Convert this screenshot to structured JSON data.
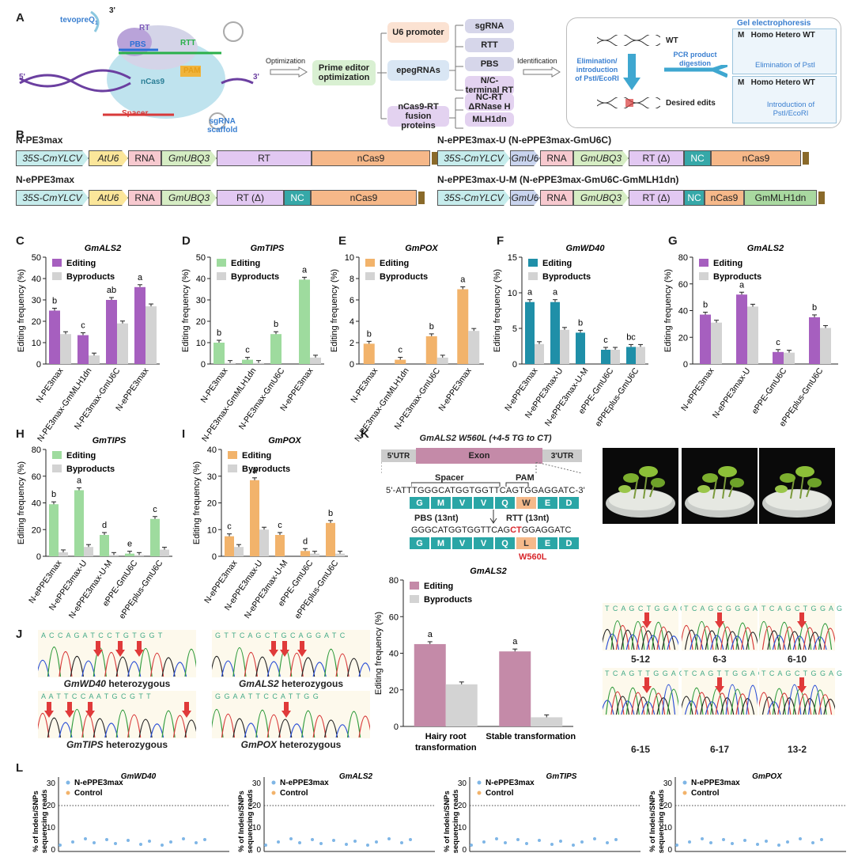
{
  "panels": {
    "A": "A",
    "B": "B",
    "C": "C",
    "D": "D",
    "E": "E",
    "F": "F",
    "G": "G",
    "H": "H",
    "I": "I",
    "J": "J",
    "K": "K",
    "L": "L"
  },
  "panelA": {
    "tevopreq": "tevopreQ",
    "tevopreq_sub": "1",
    "rt": "RT",
    "pbs": "PBS",
    "rtt": "RTT",
    "pam": "PAM",
    "ncas9": "nCas9",
    "spacer": "Spacer",
    "sgrna_scaffold": "sgRNA\nscaffold",
    "end3": "3'",
    "end5": "5'",
    "optimization": "Optimization",
    "prime_editor_opt": "Prime editor optimization",
    "u6_promoter": "U6 promoter",
    "epegrnas": "epegRNAs",
    "fusion": "nCas9-RT fusion proteins",
    "sgrna": "sgRNA",
    "rtt_box": "RTT",
    "pbs_box": "PBS",
    "nc_rt": "N/C-terminal RT",
    "nc_rt_rnase": "NC-RT ΔRNase H",
    "mlh1dn": "MLH1dn",
    "identification": "Identification",
    "wt": "WT",
    "elim_intro": "Elimination/ introduction of PstI/EcoRI",
    "pcr_digest": "PCR product digestion",
    "desired_edits": "Desired edits",
    "gel_title": "Gel electrophoresis",
    "gel_header": "M   Homo Hetero WT",
    "gel_elim": "Elimination of PstI",
    "gel_intro": "Introduction of PstI/EcoRI"
  },
  "panelB": {
    "constructs": [
      {
        "name": "N-PE3max",
        "parts": [
          "35S-CmYLCV",
          "AtU6",
          "RNA",
          "GmUBQ3",
          "RT",
          "nCas9"
        ]
      },
      {
        "name": "N-ePPE3max",
        "parts": [
          "35S-CmYLCV",
          "AtU6",
          "RNA",
          "GmUBQ3",
          "RT (Δ)",
          "NC",
          "nCas9"
        ]
      },
      {
        "name": "N-ePPE3max-U (N-ePPE3max-GmU6C)",
        "parts": [
          "35S-CmYLCV",
          "GmU6",
          "RNA",
          "GmUBQ3",
          "RT (Δ)",
          "NC",
          "nCas9"
        ]
      },
      {
        "name": "N-ePPE3max-U-M (N-ePPE3max-GmU6C-GmMLH1dn)",
        "parts": [
          "35S-CmYLCV",
          "GmU6",
          "RNA",
          "GmUBQ3",
          "RT (Δ)",
          "NC",
          "nCas9",
          "GmMLH1dn"
        ]
      }
    ]
  },
  "legend": {
    "editing": "Editing",
    "byproducts": "Byproducts"
  },
  "ylabel": "Editing frequency (%)",
  "chart_data": [
    {
      "panel": "C",
      "type": "bar",
      "title": "GmALS2",
      "ylabel": "Editing frequency (%)",
      "ylim": [
        0,
        50
      ],
      "yticks": [
        0,
        10,
        20,
        30,
        40,
        50
      ],
      "categories": [
        "N-PE3max",
        "N-PE3max-GmMLH1dn",
        "N-PE3max-GmU6C",
        "N-ePPE3max"
      ],
      "series": [
        {
          "name": "Editing",
          "color": "#a65fbf",
          "values": [
            25,
            13.5,
            30,
            36
          ]
        },
        {
          "name": "Byproducts",
          "color": "#d3d3d3",
          "values": [
            14,
            4,
            19,
            27
          ]
        }
      ],
      "letters": [
        "b",
        "c",
        "ab",
        "a"
      ]
    },
    {
      "panel": "D",
      "type": "bar",
      "title": "GmTIPS",
      "ylabel": "Editing frequency (%)",
      "ylim": [
        0,
        50
      ],
      "yticks": [
        0,
        10,
        20,
        30,
        40,
        50
      ],
      "categories": [
        "N-PE3max",
        "N-PE3max-GmMLH1dn",
        "N-PE3max-GmU6C",
        "N-ePPE3max"
      ],
      "series": [
        {
          "name": "Editing",
          "color": "#9edb9e",
          "values": [
            10,
            2,
            14,
            39.5
          ]
        },
        {
          "name": "Byproducts",
          "color": "#d3d3d3",
          "values": [
            0.5,
            0.5,
            0,
            3
          ]
        }
      ],
      "letters": [
        "b",
        "c",
        "b",
        "a"
      ]
    },
    {
      "panel": "E",
      "type": "bar",
      "title": "GmPOX",
      "ylabel": "Editing frequency (%)",
      "ylim": [
        0,
        10
      ],
      "yticks": [
        0,
        2,
        4,
        6,
        8,
        10
      ],
      "categories": [
        "N-PE3max",
        "N-PE3max-GmMLH1dn",
        "N-PE3max-GmU6C",
        "N-ePPE3max"
      ],
      "series": [
        {
          "name": "Editing",
          "color": "#f2b36b",
          "values": [
            1.9,
            0.4,
            2.6,
            7
          ]
        },
        {
          "name": "Byproducts",
          "color": "#d3d3d3",
          "values": [
            0,
            0,
            0.6,
            3.1
          ]
        }
      ],
      "letters": [
        "b",
        "c",
        "b",
        "a"
      ]
    },
    {
      "panel": "F",
      "type": "bar",
      "title": "GmWD40",
      "ylabel": "Editing frequency (%)",
      "ylim": [
        0,
        15
      ],
      "yticks": [
        0,
        5,
        10,
        15
      ],
      "categories": [
        "N-ePPE3max",
        "N-ePPE3max-U",
        "N-ePPE3max-U-M",
        "ePPE-GmU6C",
        "ePPEplus-GmU6C"
      ],
      "series": [
        {
          "name": "Editing",
          "color": "#1f8fa8",
          "values": [
            8.7,
            8.7,
            4.4,
            2,
            2.4
          ]
        },
        {
          "name": "Byproducts",
          "color": "#d3d3d3",
          "values": [
            2.8,
            4.8,
            0,
            2,
            2.4
          ]
        }
      ],
      "letters": [
        "a",
        "a",
        "b",
        "c",
        "bc"
      ]
    },
    {
      "panel": "G",
      "type": "bar",
      "title": "GmALS2",
      "ylabel": "Editing frequency (%)",
      "ylim": [
        0,
        80
      ],
      "yticks": [
        0,
        20,
        40,
        60,
        80
      ],
      "categories": [
        "N-ePPE3max",
        "N-ePPE3max-U",
        "ePPE-GmU6C",
        "ePPEplus-GmU6C"
      ],
      "series": [
        {
          "name": "Editing",
          "color": "#a65fbf",
          "values": [
            37,
            52,
            9,
            35
          ]
        },
        {
          "name": "Byproducts",
          "color": "#d3d3d3",
          "values": [
            31,
            43,
            8.5,
            27
          ]
        }
      ],
      "letters": [
        "b",
        "a",
        "c",
        "b"
      ]
    },
    {
      "panel": "H",
      "type": "bar",
      "title": "GmTIPS",
      "ylabel": "Editing frequency (%)",
      "ylim": [
        0,
        80
      ],
      "yticks": [
        0,
        20,
        40,
        60,
        80
      ],
      "categories": [
        "N-ePPE3max",
        "N-ePPE3max-U",
        "N-ePPE3max-U-M",
        "ePPE-GmU6C",
        "ePPEplus-GmU6C"
      ],
      "series": [
        {
          "name": "Editing",
          "color": "#9edb9e",
          "values": [
            39,
            49.5,
            16,
            2,
            28
          ]
        },
        {
          "name": "Byproducts",
          "color": "#d3d3d3",
          "values": [
            3,
            7,
            1,
            1,
            5
          ]
        }
      ],
      "letters": [
        "b",
        "a",
        "d",
        "e",
        "c"
      ]
    },
    {
      "panel": "I",
      "type": "bar",
      "title": "GmPOX",
      "ylabel": "Editing frequency (%)",
      "ylim": [
        0,
        40
      ],
      "yticks": [
        0,
        10,
        20,
        30,
        40
      ],
      "categories": [
        "N-ePPE3max",
        "N-ePPE3max-U",
        "N-ePPE3max-U-M",
        "ePPE-GmU6C",
        "ePPEplus-GmU6C"
      ],
      "series": [
        {
          "name": "Editing",
          "color": "#f2b36b",
          "values": [
            7.5,
            28.5,
            8,
            2,
            12.5
          ]
        },
        {
          "name": "Byproducts",
          "color": "#d3d3d3",
          "values": [
            3.5,
            10,
            0,
            1,
            1
          ]
        }
      ],
      "letters": [
        "c",
        "a",
        "c",
        "d",
        "b"
      ]
    },
    {
      "panel": "K",
      "type": "bar",
      "title": "GmALS2",
      "ylabel": "Editing frequency (%)",
      "ylim": [
        0,
        80
      ],
      "yticks": [
        0,
        20,
        40,
        60,
        80
      ],
      "categories": [
        "Hairy root transformation",
        "Stable transformation"
      ],
      "series": [
        {
          "name": "Editing",
          "color": "#c48aa8",
          "values": [
            45,
            41
          ]
        },
        {
          "name": "Byproducts",
          "color": "#d3d3d3",
          "values": [
            23,
            5
          ]
        }
      ],
      "letters": [
        "a",
        "a"
      ]
    }
  ],
  "panelJ": {
    "wd40_seq": "A C C A G A T C C T G T G G T",
    "als2_seq": "G T T C A G C T G C A G G A T C",
    "tips_seq": "A A T T C C A A T G C G T T",
    "pox_seq": "G G A A T T C C A T T G G",
    "wd40_label": "GmWD40",
    "als2_label": "GmALS2",
    "tips_label": "GmTIPS",
    "pox_label": "GmPOX",
    "het": "heterozygous"
  },
  "panelK": {
    "title": "GmALS2 W560L (+4-5 TG to CT)",
    "utr5": "5'UTR",
    "exon": "Exon",
    "utr3": "3'UTR",
    "spacer": "Spacer",
    "pam": "PAM",
    "seq_top": "5'-ATTTGGGCATGGTGGTTCAGTGGAGGATC-3'",
    "aa_top": [
      "G",
      "M",
      "V",
      "V",
      "Q",
      "W",
      "E",
      "D"
    ],
    "pbs": "PBS (13nt)",
    "rtt": "RTT (13nt)",
    "seq_edit_pre": "GGGCATGGTGGTTCAG",
    "seq_edit_mut": "CT",
    "seq_edit_post": "GGAGGATC",
    "aa_bottom": [
      "G",
      "M",
      "V",
      "V",
      "Q",
      "L",
      "E",
      "D"
    ],
    "mutation": "W560L",
    "lines_row1": [
      "5-12",
      "6-3",
      "6-10"
    ],
    "lines_row2": [
      "6-15",
      "6-17",
      "13-2"
    ],
    "chrom_r1": [
      "T C A G C T G G A G",
      "T C A G C G G G A G",
      "T C A G C T G G A G"
    ],
    "chrom_r2": [
      "T C A G T T G G A G",
      "T C A G T T G G A G",
      "T C A G C T G G A G"
    ]
  },
  "panelL": {
    "ylabel": "% of Indels/SNPs sequencing reads",
    "legend_main": "N-ePPE3max",
    "legend_ctrl": "Control",
    "threshold": "20",
    "plots": [
      {
        "title": "GmWD40"
      },
      {
        "title": "GmALS2"
      },
      {
        "title": "GmTIPS"
      },
      {
        "title": "GmPOX"
      }
    ],
    "yticks": [
      "0",
      "10",
      "20",
      "30"
    ]
  }
}
